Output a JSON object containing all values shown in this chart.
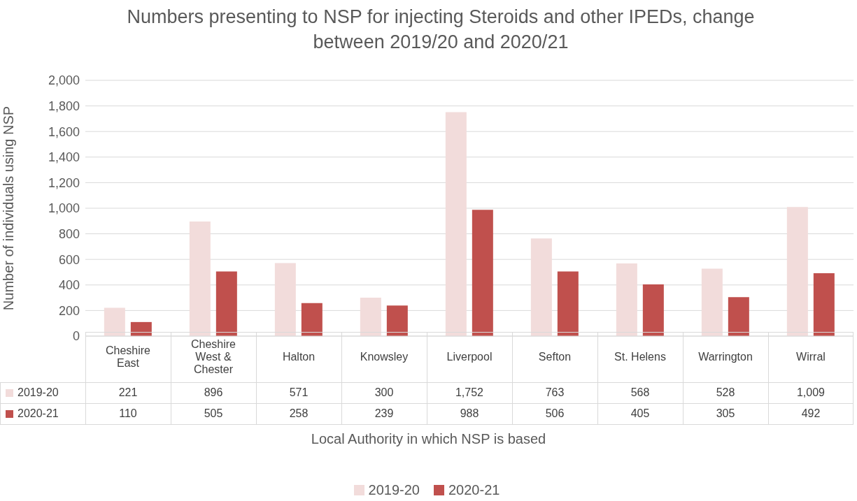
{
  "chart_data": {
    "type": "bar",
    "title": "Numbers presenting to NSP for injecting Steroids and other IPEDs, change between 2019/20 and 2020/21",
    "xlabel": "Local Authority in which NSP is based",
    "ylabel": "Number of individuals using NSP",
    "categories": [
      "Cheshire East",
      "Cheshire West & Chester",
      "Halton",
      "Knowsley",
      "Liverpool",
      "Sefton",
      "St. Helens",
      "Warrington",
      "Wirral"
    ],
    "series": [
      {
        "name": "2019-20",
        "color": "#f2dcdb",
        "values": [
          221,
          896,
          571,
          300,
          1752,
          763,
          568,
          528,
          1009
        ],
        "value_labels": [
          "221",
          "896",
          "571",
          "300",
          "1,752",
          "763",
          "568",
          "528",
          "1,009"
        ]
      },
      {
        "name": "2020-21",
        "color": "#c0504d",
        "values": [
          110,
          505,
          258,
          239,
          988,
          506,
          405,
          305,
          492
        ],
        "value_labels": [
          "110",
          "505",
          "258",
          "239",
          "988",
          "506",
          "405",
          "305",
          "492"
        ]
      }
    ],
    "ylim": [
      0,
      2000
    ],
    "yticks": [
      0,
      200,
      400,
      600,
      800,
      {
        "value": 1000,
        "label": "1,000"
      },
      {
        "value": 1200,
        "label": "1,200"
      },
      {
        "value": 1400,
        "label": "1,400"
      },
      {
        "value": 1600,
        "label": "1,600"
      },
      {
        "value": 1800,
        "label": "1,800"
      },
      {
        "value": 2000,
        "label": "2,000"
      }
    ],
    "grid": "y",
    "legend": "bottom"
  }
}
